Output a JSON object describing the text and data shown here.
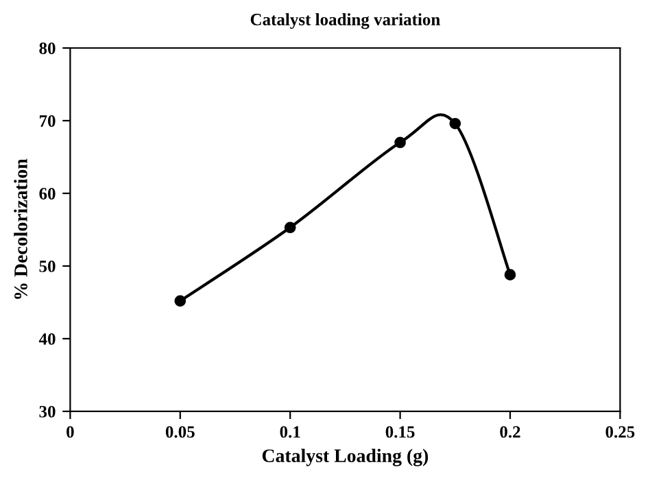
{
  "chart_data": {
    "type": "line",
    "title": "Catalyst loading variation",
    "xlabel": "Catalyst Loading (g)",
    "ylabel": "% Decolorization",
    "x": [
      0.05,
      0.1,
      0.15,
      0.175,
      0.2
    ],
    "series": [
      {
        "color": "#000000",
        "values": [
          45.2,
          55.3,
          67.0,
          69.6,
          48.8
        ]
      }
    ],
    "xlim": [
      0,
      0.25
    ],
    "xticks": [
      0,
      0.05,
      0.1,
      0.15,
      0.2,
      0.25
    ],
    "ylim": [
      30,
      80
    ],
    "yticks": [
      30,
      40,
      50,
      60,
      70,
      80
    ],
    "marker": "circle",
    "line_style": "solid",
    "grid": false,
    "legend": false
  }
}
